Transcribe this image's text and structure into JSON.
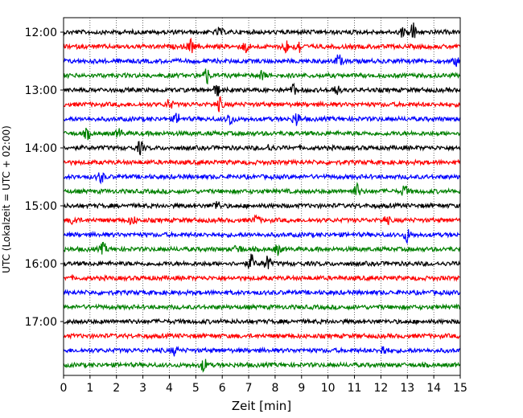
{
  "chart_data": {
    "type": "seismogram-helicorder",
    "xlabel": "Zeit  [min]",
    "ylabel": "UTC (Lokalzeit = UTC + 02:00)",
    "xlim": [
      0,
      15
    ],
    "x_ticks": [
      0,
      1,
      2,
      3,
      4,
      5,
      6,
      7,
      8,
      9,
      10,
      11,
      12,
      13,
      14,
      15
    ],
    "x_grid": "dotted vertical lines at each minute",
    "trace_interval_min": 15,
    "trace_count": 24,
    "first_trace_utc": "12:00",
    "last_trace_utc": "17:45",
    "y_ticks": [
      "12:00",
      "13:00",
      "14:00",
      "15:00",
      "16:00",
      "17:00"
    ],
    "colors": [
      "#000000",
      "#ff0000",
      "#0000ff",
      "#008000"
    ],
    "events": [
      {
        "trace": 0,
        "minute": 12.8,
        "amp": 1.2
      },
      {
        "trace": 0,
        "minute": 13.2,
        "amp": 2.8
      },
      {
        "trace": 0,
        "minute": 5.9,
        "amp": 1.0
      },
      {
        "trace": 1,
        "minute": 4.8,
        "amp": 2.0
      },
      {
        "trace": 1,
        "minute": 6.9,
        "amp": 1.6
      },
      {
        "trace": 1,
        "minute": 8.4,
        "amp": 1.8
      },
      {
        "trace": 1,
        "minute": 8.9,
        "amp": 2.0
      },
      {
        "trace": 2,
        "minute": 10.4,
        "amp": 1.8
      },
      {
        "trace": 2,
        "minute": 14.9,
        "amp": 1.5
      },
      {
        "trace": 3,
        "minute": 5.4,
        "amp": 2.4
      },
      {
        "trace": 3,
        "minute": 7.5,
        "amp": 1.2
      },
      {
        "trace": 4,
        "minute": 5.8,
        "amp": 1.6
      },
      {
        "trace": 4,
        "minute": 10.3,
        "amp": 1.6
      },
      {
        "trace": 4,
        "minute": 8.7,
        "amp": 1.4
      },
      {
        "trace": 5,
        "minute": 4.0,
        "amp": 1.4
      },
      {
        "trace": 5,
        "minute": 5.9,
        "amp": 1.8
      },
      {
        "trace": 6,
        "minute": 4.3,
        "amp": 1.5
      },
      {
        "trace": 6,
        "minute": 6.3,
        "amp": 1.8
      },
      {
        "trace": 6,
        "minute": 8.8,
        "amp": 2.2
      },
      {
        "trace": 7,
        "minute": 0.9,
        "amp": 1.4
      },
      {
        "trace": 7,
        "minute": 2.1,
        "amp": 1.2
      },
      {
        "trace": 8,
        "minute": 2.9,
        "amp": 1.8
      },
      {
        "trace": 8,
        "minute": 7.8,
        "amp": 1.0
      },
      {
        "trace": 10,
        "minute": 1.4,
        "amp": 1.6
      },
      {
        "trace": 11,
        "minute": 11.1,
        "amp": 2.0
      },
      {
        "trace": 11,
        "minute": 12.9,
        "amp": 1.6
      },
      {
        "trace": 12,
        "minute": 5.8,
        "amp": 1.4
      },
      {
        "trace": 13,
        "minute": 0.4,
        "amp": 1.4
      },
      {
        "trace": 13,
        "minute": 2.6,
        "amp": 1.2
      },
      {
        "trace": 13,
        "minute": 7.3,
        "amp": 1.2
      },
      {
        "trace": 13,
        "minute": 12.2,
        "amp": 1.2
      },
      {
        "trace": 14,
        "minute": 13.0,
        "amp": 2.0
      },
      {
        "trace": 15,
        "minute": 1.5,
        "amp": 1.6
      },
      {
        "trace": 15,
        "minute": 6.6,
        "amp": 1.4
      },
      {
        "trace": 15,
        "minute": 8.1,
        "amp": 1.4
      },
      {
        "trace": 16,
        "minute": 7.1,
        "amp": 2.4
      },
      {
        "trace": 16,
        "minute": 7.7,
        "amp": 2.4
      },
      {
        "trace": 22,
        "minute": 4.2,
        "amp": 1.2
      },
      {
        "trace": 22,
        "minute": 12.1,
        "amp": 1.4
      },
      {
        "trace": 23,
        "minute": 5.3,
        "amp": 1.8
      }
    ]
  }
}
